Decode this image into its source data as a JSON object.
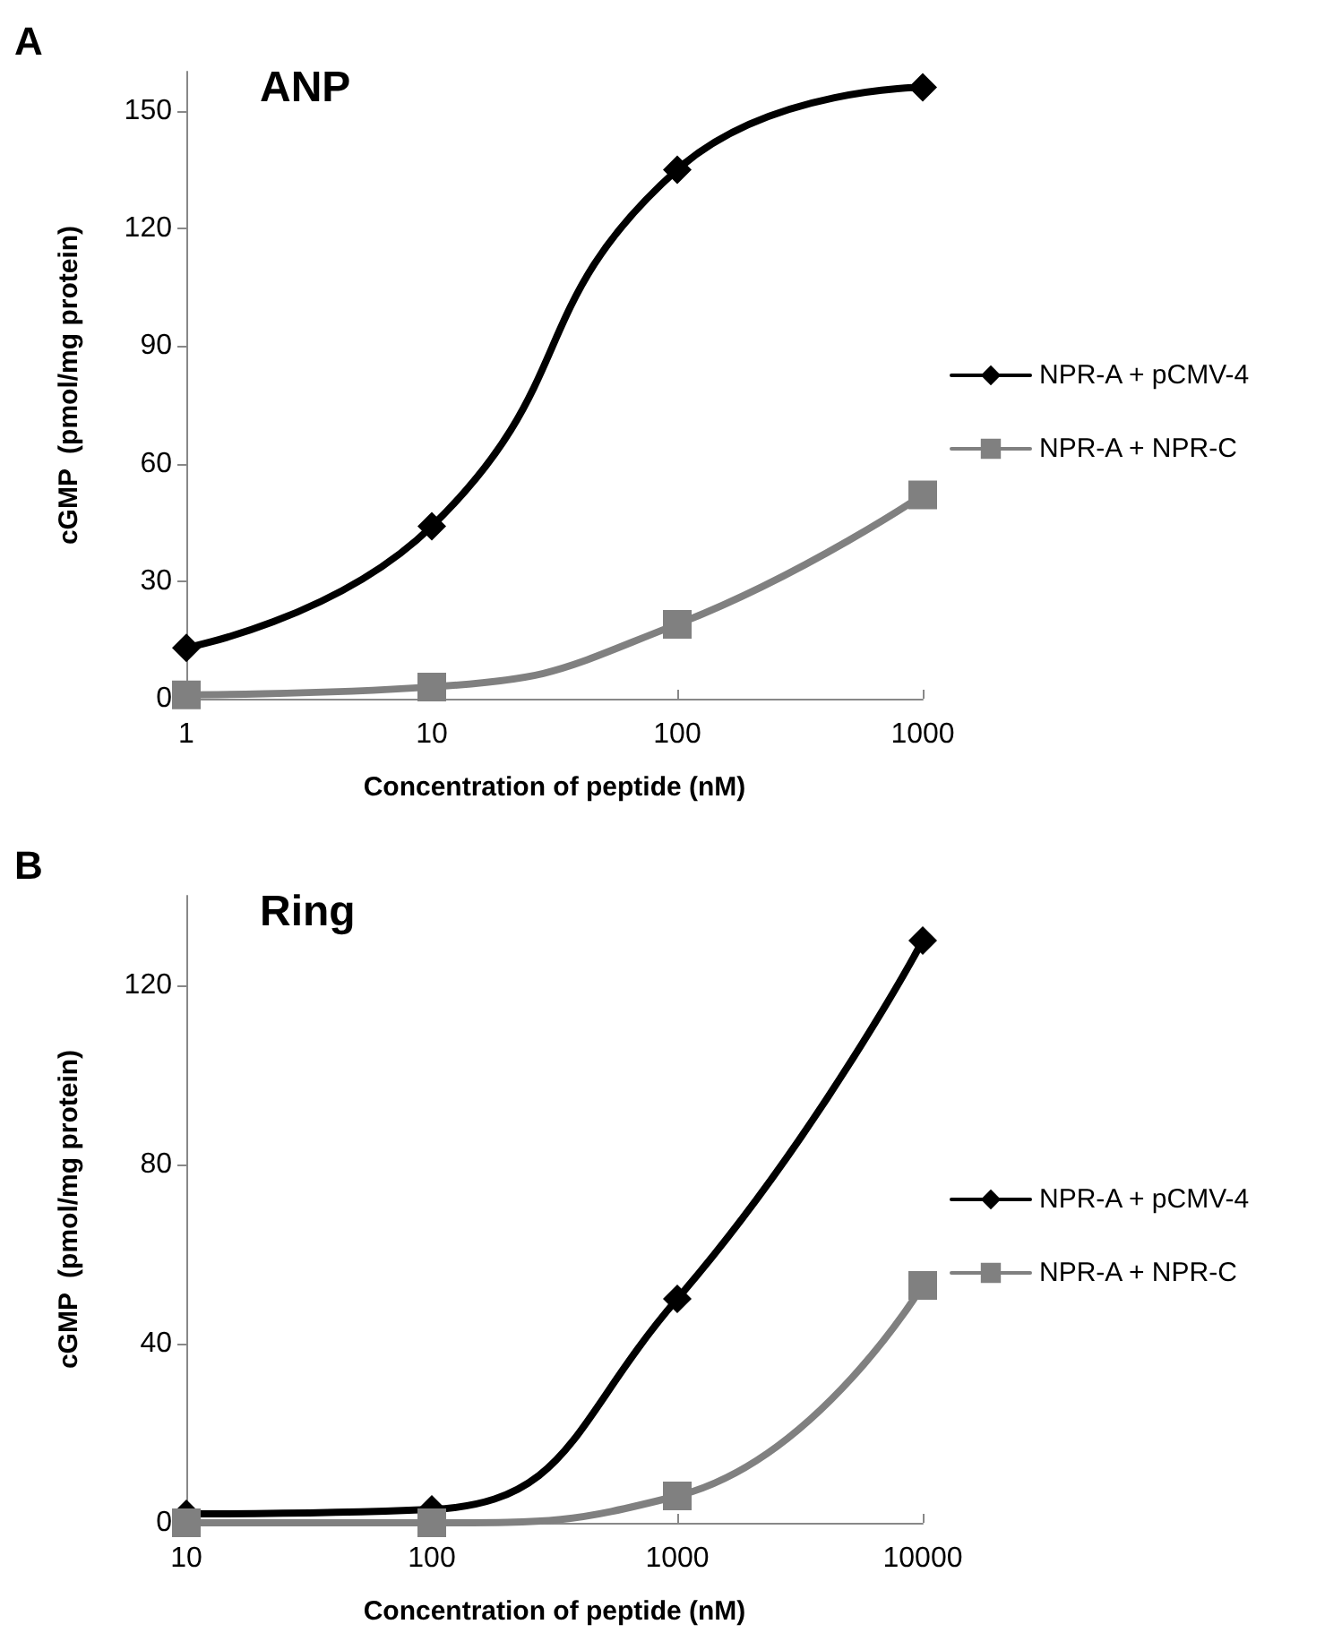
{
  "chart_data": [
    {
      "type": "line",
      "title": "ANP",
      "xlabel": "Concentration of peptide (nM)",
      "ylabel": "cGMP  (pmol/mg protein)",
      "annotations": [
        "A"
      ],
      "x": [
        1,
        10,
        100,
        1000
      ],
      "log": "x",
      "xlim": [
        1,
        1000
      ],
      "xticks": [
        1,
        10,
        100,
        1000
      ],
      "ylim": [
        0,
        160
      ],
      "yticks": [
        0,
        30,
        60,
        90,
        120,
        150
      ],
      "grid": false,
      "legend": "right",
      "series": [
        {
          "name": "NPR-A + pCMV-4",
          "color": "#000000",
          "marker": "diamond",
          "values": [
            13,
            44,
            135,
            156
          ]
        },
        {
          "name": "NPR-A + NPR-C",
          "color": "#808080",
          "marker": "square",
          "values": [
            1,
            3,
            19,
            52
          ]
        }
      ]
    },
    {
      "type": "line",
      "title": "Ring",
      "xlabel": "Concentration of peptide (nM)",
      "ylabel": "cGMP  (pmol/mg protein)",
      "annotations": [
        "B"
      ],
      "x": [
        10,
        100,
        1000,
        10000
      ],
      "log": "x",
      "xlim": [
        10,
        10000
      ],
      "xticks": [
        10,
        100,
        1000,
        10000
      ],
      "ylim": [
        0,
        140
      ],
      "yticks": [
        0,
        40,
        80,
        120
      ],
      "grid": false,
      "legend": "right",
      "series": [
        {
          "name": "NPR-A + pCMV-4",
          "color": "#000000",
          "marker": "diamond",
          "values": [
            2,
            3,
            50,
            130
          ]
        },
        {
          "name": "NPR-A + NPR-C",
          "color": "#808080",
          "marker": "square",
          "values": [
            0,
            0,
            6,
            53
          ]
        }
      ]
    }
  ]
}
